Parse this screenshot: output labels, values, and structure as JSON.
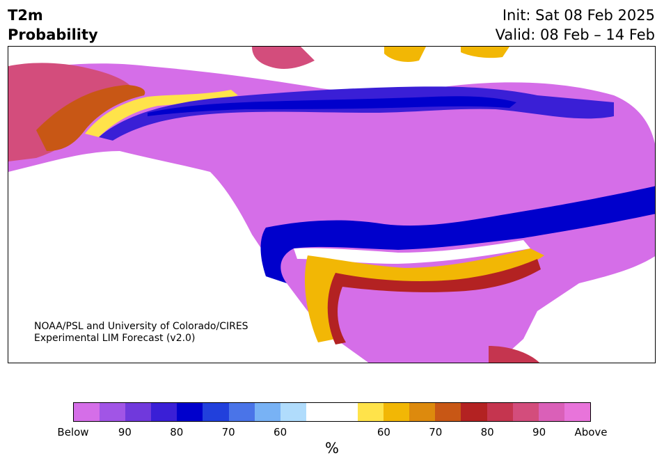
{
  "header": {
    "title_line1": "T2m",
    "title_line2": "Probability",
    "init": "Init: Sat 08 Feb 2025",
    "valid": "Valid: 08 Feb – 14 Feb"
  },
  "map": {
    "credit_line1": "NOAA/PSL and University of Colorado/CIRES",
    "credit_line2": "Experimental LIM Forecast (v2.0)"
  },
  "legend": {
    "unit": "%",
    "colors": [
      "#d56ee8",
      "#a155e6",
      "#7039dc",
      "#3a1fd6",
      "#0000cc",
      "#2140dc",
      "#4a74e8",
      "#78b2f5",
      "#b0dcfc",
      "#ffffff",
      "#ffffff",
      "#ffe34a",
      "#f2b705",
      "#dd8a0d",
      "#c85715",
      "#b32222",
      "#c5354f",
      "#d34d7c",
      "#da60b8",
      "#e874da"
    ],
    "ticks": [
      {
        "label": "Below",
        "pos": 0
      },
      {
        "label": "90",
        "pos": 2
      },
      {
        "label": "80",
        "pos": 4
      },
      {
        "label": "70",
        "pos": 6
      },
      {
        "label": "60",
        "pos": 8
      },
      {
        "label": "60",
        "pos": 12
      },
      {
        "label": "70",
        "pos": 14
      },
      {
        "label": "80",
        "pos": 16
      },
      {
        "label": "90",
        "pos": 18
      },
      {
        "label": "Above",
        "pos": 20
      }
    ]
  }
}
